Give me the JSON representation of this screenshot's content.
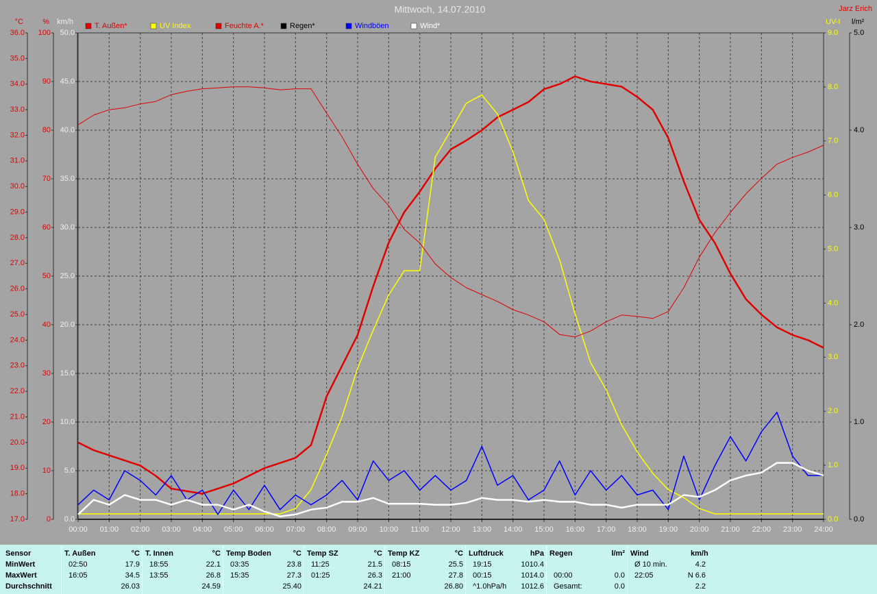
{
  "header": {
    "title": "Mittwoch, 14.07.2010",
    "author": "Jarz Erich"
  },
  "chart_data": {
    "type": "line",
    "x": [
      0,
      0.5,
      1,
      1.5,
      2,
      2.5,
      3,
      3.5,
      4,
      4.5,
      5,
      5.5,
      6,
      6.5,
      7,
      7.5,
      8,
      8.5,
      9,
      9.5,
      10,
      10.5,
      11,
      11.5,
      12,
      12.5,
      13,
      13.5,
      14,
      14.5,
      15,
      15.5,
      16,
      16.5,
      17,
      17.5,
      18,
      18.5,
      19,
      19.5,
      20,
      20.5,
      21,
      21.5,
      22,
      22.5,
      23,
      23.5,
      24
    ],
    "xlim": [
      0,
      24
    ],
    "xticks": [
      {
        "value": 0,
        "label": "00:00"
      },
      {
        "value": 1,
        "label": "01:00"
      },
      {
        "value": 2,
        "label": "02:00"
      },
      {
        "value": 3,
        "label": "03:00"
      },
      {
        "value": 4,
        "label": "04:00"
      },
      {
        "value": 5,
        "label": "05:00"
      },
      {
        "value": 6,
        "label": "06:00"
      },
      {
        "value": 7,
        "label": "07:00"
      },
      {
        "value": 8,
        "label": "08:00"
      },
      {
        "value": 9,
        "label": "09:00"
      },
      {
        "value": 10,
        "label": "10:00"
      },
      {
        "value": 11,
        "label": "11:00"
      },
      {
        "value": 12,
        "label": "12:00"
      },
      {
        "value": 13,
        "label": "13:00"
      },
      {
        "value": 14,
        "label": "14:00"
      },
      {
        "value": 15,
        "label": "15:00"
      },
      {
        "value": 16,
        "label": "16:00"
      },
      {
        "value": 17,
        "label": "17:00"
      },
      {
        "value": 18,
        "label": "18:00"
      },
      {
        "value": 19,
        "label": "19:00"
      },
      {
        "value": 20,
        "label": "20:00"
      },
      {
        "value": 21,
        "label": "21:00"
      },
      {
        "value": 22,
        "label": "22:00"
      },
      {
        "value": 23,
        "label": "23:00"
      },
      {
        "value": 24,
        "label": "24:00"
      }
    ],
    "grid": true,
    "axes": [
      {
        "label": "°C",
        "side": "left",
        "color": "#e00000",
        "lim": [
          17,
          36
        ],
        "ticks": [
          {
            "value": 17,
            "label": "17.0"
          },
          {
            "value": 18,
            "label": "18.0"
          },
          {
            "value": 19,
            "label": "19.0"
          },
          {
            "value": 20,
            "label": "20.0"
          },
          {
            "value": 21,
            "label": "21.0"
          },
          {
            "value": 22,
            "label": "22.0"
          },
          {
            "value": 23,
            "label": "23.0"
          },
          {
            "value": 24,
            "label": "24.0"
          },
          {
            "value": 25,
            "label": "25.0"
          },
          {
            "value": 26,
            "label": "26.0"
          },
          {
            "value": 27,
            "label": "27.0"
          },
          {
            "value": 28,
            "label": "28.0"
          },
          {
            "value": 29,
            "label": "29.0"
          },
          {
            "value": 30,
            "label": "30.0"
          },
          {
            "value": 31,
            "label": "31.0"
          },
          {
            "value": 32,
            "label": "32.0"
          },
          {
            "value": 33,
            "label": "33.0"
          },
          {
            "value": 34,
            "label": "34.0"
          },
          {
            "value": 35,
            "label": "35.0"
          },
          {
            "value": 36,
            "label": "36.0"
          }
        ]
      },
      {
        "label": "%",
        "side": "left",
        "color": "#e00000",
        "lim": [
          0,
          100
        ],
        "ticks": [
          0,
          10,
          20,
          30,
          40,
          50,
          60,
          70,
          80,
          90,
          100
        ]
      },
      {
        "label": "km/h",
        "side": "left",
        "color": "#eeeeee",
        "lim": [
          0,
          50
        ],
        "grid": true,
        "ticks": [
          {
            "value": 0,
            "label": "0.0"
          },
          {
            "value": 5,
            "label": "5.0"
          },
          {
            "value": 10,
            "label": "10.0"
          },
          {
            "value": 15,
            "label": "15.0"
          },
          {
            "value": 20,
            "label": "20.0"
          },
          {
            "value": 25,
            "label": "25.0"
          },
          {
            "value": 30,
            "label": "30.0"
          },
          {
            "value": 35,
            "label": "35.0"
          },
          {
            "value": 40,
            "label": "40.0"
          },
          {
            "value": 45,
            "label": "45.0"
          },
          {
            "value": 50,
            "label": "50.0"
          }
        ]
      },
      {
        "label": "UV-I",
        "side": "right",
        "color": "#ffff00",
        "lim": [
          0,
          9
        ],
        "ticks": [
          {
            "value": 0,
            "label": "0.0"
          },
          {
            "value": 1,
            "label": "1.0"
          },
          {
            "value": 2,
            "label": "2.0"
          },
          {
            "value": 3,
            "label": "3.0"
          },
          {
            "value": 4,
            "label": "4.0"
          },
          {
            "value": 5,
            "label": "5.0"
          },
          {
            "value": 6,
            "label": "6.0"
          },
          {
            "value": 7,
            "label": "7.0"
          },
          {
            "value": 8,
            "label": "8.0"
          },
          {
            "value": 9,
            "label": "9.0"
          }
        ]
      },
      {
        "label": "l/m²",
        "side": "right",
        "color": "#000000",
        "lim": [
          0,
          5
        ],
        "ticks": [
          {
            "value": 0,
            "label": "0.0"
          },
          {
            "value": 1,
            "label": "1.0"
          },
          {
            "value": 2,
            "label": "2.0"
          },
          {
            "value": 3,
            "label": "3.0"
          },
          {
            "value": 4,
            "label": "4.0"
          },
          {
            "value": 5,
            "label": "5.0"
          }
        ]
      }
    ],
    "series": [
      {
        "name": "T. Außen*",
        "color": "#e00000",
        "axis": 0,
        "weight": "bold",
        "values": [
          20.0,
          19.7,
          19.5,
          19.3,
          19.1,
          18.7,
          18.2,
          18.1,
          18.0,
          18.2,
          18.4,
          18.7,
          19.0,
          19.2,
          19.4,
          19.9,
          21.8,
          23.0,
          24.2,
          26.1,
          27.8,
          29.0,
          29.8,
          30.7,
          31.45,
          31.8,
          32.2,
          32.7,
          33.0,
          33.3,
          33.8,
          34.0,
          34.3,
          34.1,
          34.0,
          33.9,
          33.5,
          33.0,
          31.9,
          30.2,
          28.7,
          27.8,
          26.6,
          25.6,
          25.0,
          24.5,
          24.2,
          24.0,
          23.7
        ]
      },
      {
        "name": "UV Index",
        "color": "#ffff00",
        "axis": 3,
        "weight": "normal",
        "values": [
          0.1,
          0.1,
          0.1,
          0.1,
          0.1,
          0.1,
          0.1,
          0.1,
          0.1,
          0.1,
          0.1,
          0.1,
          0.1,
          0.1,
          0.2,
          0.55,
          1.2,
          1.9,
          2.8,
          3.5,
          4.15,
          4.6,
          4.6,
          6.7,
          7.2,
          7.7,
          7.85,
          7.5,
          6.8,
          5.9,
          5.55,
          4.8,
          3.8,
          2.9,
          2.4,
          1.75,
          1.25,
          0.85,
          0.55,
          0.4,
          0.2,
          0.1,
          0.1,
          0.1,
          0.1,
          0.1,
          0.1,
          0.1,
          0.1
        ]
      },
      {
        "name": "Feuchte A.*",
        "color": "#e00000",
        "axis": 1,
        "weight": "thin",
        "values": [
          81.1,
          83.1,
          84.2,
          84.6,
          85.4,
          85.9,
          87.3,
          88.0,
          88.5,
          88.7,
          88.9,
          88.9,
          88.7,
          88.3,
          88.5,
          88.5,
          83.5,
          78.6,
          73.0,
          68.0,
          64.5,
          59.6,
          56.8,
          52.5,
          49.7,
          47.6,
          46.2,
          44.8,
          43.1,
          42.0,
          40.6,
          38.0,
          37.5,
          38.7,
          40.6,
          42.0,
          41.7,
          41.3,
          42.7,
          47.6,
          53.9,
          58.9,
          63.1,
          66.9,
          70.1,
          73.0,
          74.4,
          75.5,
          76.9
        ]
      },
      {
        "name": "Regen*",
        "color": "#000000",
        "axis": 4,
        "weight": "normal",
        "values": [
          0,
          0,
          0,
          0,
          0,
          0,
          0,
          0,
          0,
          0,
          0,
          0,
          0,
          0,
          0,
          0,
          0,
          0,
          0,
          0,
          0,
          0,
          0,
          0,
          0,
          0,
          0,
          0,
          0,
          0,
          0,
          0,
          0,
          0,
          0,
          0,
          0,
          0,
          0,
          0,
          0,
          0,
          0,
          0,
          0,
          0,
          0,
          0,
          0
        ]
      },
      {
        "name": "Windböen",
        "color": "#0000ff",
        "axis": 2,
        "weight": "normal",
        "values": [
          1.5,
          3.0,
          2.0,
          5.0,
          4.0,
          2.5,
          4.5,
          2.0,
          3.0,
          0.5,
          3.0,
          1.0,
          3.5,
          1.0,
          2.5,
          1.5,
          2.5,
          4.0,
          2.0,
          6.0,
          4.0,
          5.0,
          3.0,
          4.5,
          3.0,
          4.0,
          7.5,
          3.5,
          4.5,
          2.0,
          3.0,
          6.0,
          2.5,
          5.0,
          3.0,
          4.5,
          2.5,
          3.0,
          1.0,
          6.5,
          2.0,
          5.5,
          8.5,
          6.0,
          9.0,
          11.0,
          6.5,
          4.5,
          4.5
        ]
      },
      {
        "name": "Wind*",
        "color": "#ffffff",
        "axis": 2,
        "weight": "bold",
        "values": [
          0.5,
          2.0,
          1.5,
          2.5,
          2.0,
          2.0,
          1.5,
          2.0,
          1.5,
          1.5,
          1.0,
          1.5,
          0.8,
          0.3,
          0.5,
          1.0,
          1.2,
          1.8,
          1.8,
          2.2,
          1.6,
          1.6,
          1.6,
          1.5,
          1.5,
          1.7,
          2.2,
          2.0,
          2.0,
          1.8,
          2.0,
          1.8,
          1.8,
          1.5,
          1.5,
          1.2,
          1.5,
          1.5,
          1.5,
          2.5,
          2.3,
          3.0,
          4.0,
          4.5,
          4.8,
          5.8,
          5.8,
          5.0,
          4.5
        ]
      }
    ]
  },
  "stats": {
    "row_labels": [
      "Sensor",
      "MinWert",
      "MaxWert",
      "Durchschnitt"
    ],
    "columns": [
      {
        "name": "T. Außen",
        "unit": "°C",
        "rows": [
          [
            "02:50",
            "17.9"
          ],
          [
            "16:05",
            "34.5"
          ],
          [
            null,
            "26.03"
          ]
        ]
      },
      {
        "name": "T. Innen",
        "unit": "°C",
        "rows": [
          [
            "18:55",
            "22.1"
          ],
          [
            "13:55",
            "26.8"
          ],
          [
            null,
            "24.59"
          ]
        ]
      },
      {
        "name": "Temp Boden",
        "unit": "°C",
        "rows": [
          [
            "03:35",
            "23.8"
          ],
          [
            "15:35",
            "27.3"
          ],
          [
            null,
            "25.40"
          ]
        ]
      },
      {
        "name": "Temp SZ",
        "unit": "°C",
        "rows": [
          [
            "11:25",
            "21.5"
          ],
          [
            "01:25",
            "26.3"
          ],
          [
            null,
            "24.21"
          ]
        ]
      },
      {
        "name": "Temp KZ",
        "unit": "°C",
        "rows": [
          [
            "08:15",
            "25.5"
          ],
          [
            "21:00",
            "27.8"
          ],
          [
            null,
            "26.80"
          ]
        ]
      },
      {
        "name": "Luftdruck",
        "unit": "hPa",
        "rows": [
          [
            "19:15",
            "1010.4"
          ],
          [
            "00:15",
            "1014.0"
          ],
          [
            "^1.0hPa/h",
            "1012.6"
          ]
        ]
      },
      {
        "name": "Regen",
        "unit": "l/m²",
        "rows": [
          [
            null,
            null
          ],
          [
            "00:00",
            "0.0"
          ],
          [
            "Gesamt:",
            "0.0"
          ]
        ]
      },
      {
        "name": "Wind",
        "unit": "km/h",
        "rows": [
          [
            "Ø 10 min.",
            "4.2"
          ],
          [
            "22:05",
            "N 6.6"
          ],
          [
            null,
            "2.2"
          ]
        ]
      }
    ]
  }
}
